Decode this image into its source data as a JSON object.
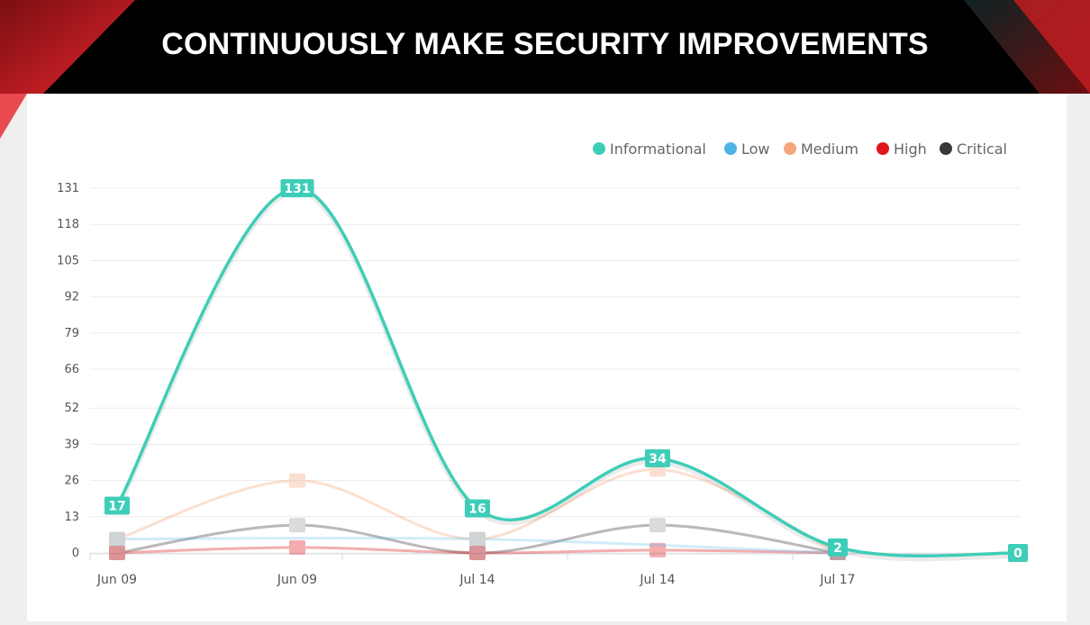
{
  "header": {
    "title": "CONTINUOUSLY MAKE SECURITY IMPROVEMENTS",
    "accent_color": "#e3242b",
    "background_color": "#000000"
  },
  "chart_data": {
    "type": "line",
    "title": "",
    "xlabel": "",
    "ylabel": "",
    "x": [
      "Jun 09",
      "Jun 09",
      "Jul 14",
      "Jul 14",
      "Jul 17",
      ""
    ],
    "y_ticks": [
      0,
      13,
      26,
      39,
      52,
      66,
      79,
      92,
      105,
      118,
      131
    ],
    "ylim": [
      0,
      131
    ],
    "grid": true,
    "legend_position": "top-right",
    "series": [
      {
        "name": "Informational",
        "color": "#3ecdb8",
        "values": [
          17,
          131,
          16,
          34,
          2,
          0
        ]
      },
      {
        "name": "Low",
        "color": "#4db3e6",
        "values": [
          5,
          null,
          5,
          null,
          0,
          null
        ]
      },
      {
        "name": "Medium",
        "color": "#f5a57a",
        "values": [
          5,
          26,
          5,
          30,
          0,
          null
        ]
      },
      {
        "name": "High",
        "color": "#e0161c",
        "values": [
          0,
          2,
          0,
          1,
          0,
          null
        ]
      },
      {
        "name": "Critical",
        "color": "#3a3a3a",
        "values": [
          0,
          10,
          0,
          10,
          0,
          null
        ]
      }
    ]
  }
}
